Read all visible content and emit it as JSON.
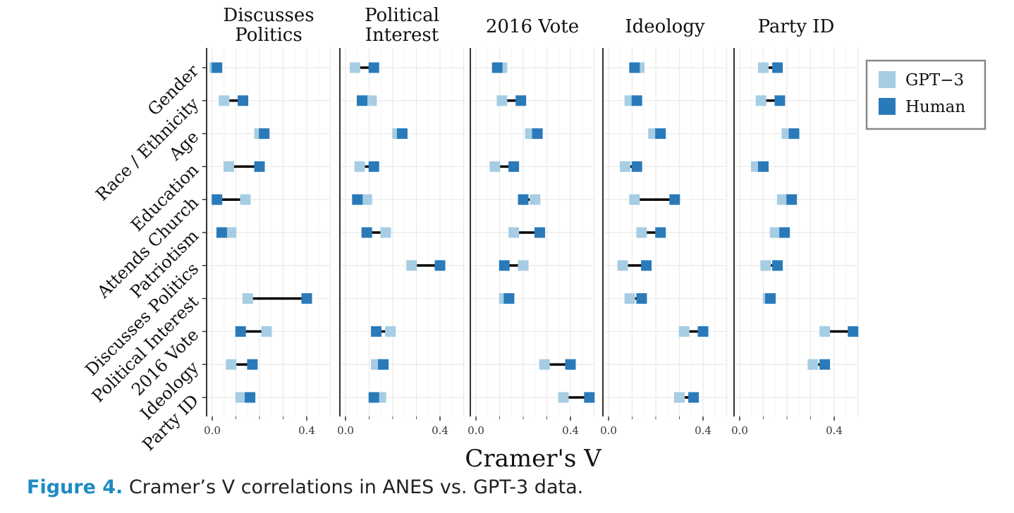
{
  "chart_data": {
    "type": "dot-dumbbell",
    "xlabel": "Cramer's V",
    "xticks": [
      0.0,
      0.4
    ],
    "xtick_labels": [
      "0.0",
      "0.4"
    ],
    "xlim": [
      0.0,
      0.5
    ],
    "grid": true,
    "legend_position": "right",
    "legend": [
      {
        "name": "GPT−3",
        "color": "#a6cde3"
      },
      {
        "name": "Human",
        "color": "#2a7ab9"
      }
    ],
    "colors": {
      "gpt3": "#a6cde3",
      "human": "#2a7ab9",
      "connector": "#000000"
    },
    "y_categories": [
      "Gender",
      "Race / Ethnicity",
      "Age",
      "Education",
      "Attends Church",
      "Patriotism",
      "Discusses Politics",
      "Political Interest",
      "2016 Vote",
      "Ideology",
      "Party ID"
    ],
    "facets": [
      {
        "title": "Discusses\nPolitics",
        "rows": [
          {
            "category": "Gender",
            "gpt3": 0.01,
            "human": 0.02
          },
          {
            "category": "Race / Ethnicity",
            "gpt3": 0.05,
            "human": 0.13
          },
          {
            "category": "Age",
            "gpt3": 0.2,
            "human": 0.22
          },
          {
            "category": "Education",
            "gpt3": 0.07,
            "human": 0.2
          },
          {
            "category": "Attends Church",
            "gpt3": 0.14,
            "human": 0.02
          },
          {
            "category": "Patriotism",
            "gpt3": 0.08,
            "human": 0.04
          },
          {
            "category": "Political Interest",
            "gpt3": 0.15,
            "human": 0.4
          },
          {
            "category": "2016 Vote",
            "gpt3": 0.23,
            "human": 0.12
          },
          {
            "category": "Ideology",
            "gpt3": 0.08,
            "human": 0.17
          },
          {
            "category": "Party ID",
            "gpt3": 0.12,
            "human": 0.16
          }
        ]
      },
      {
        "title": "Political\nInterest",
        "rows": [
          {
            "category": "Gender",
            "gpt3": 0.04,
            "human": 0.12
          },
          {
            "category": "Race / Ethnicity",
            "gpt3": 0.11,
            "human": 0.07
          },
          {
            "category": "Age",
            "gpt3": 0.22,
            "human": 0.24
          },
          {
            "category": "Education",
            "gpt3": 0.06,
            "human": 0.12
          },
          {
            "category": "Attends Church",
            "gpt3": 0.09,
            "human": 0.05
          },
          {
            "category": "Patriotism",
            "gpt3": 0.17,
            "human": 0.09
          },
          {
            "category": "Discusses Politics",
            "gpt3": 0.28,
            "human": 0.4
          },
          {
            "category": "2016 Vote",
            "gpt3": 0.19,
            "human": 0.13
          },
          {
            "category": "Ideology",
            "gpt3": 0.13,
            "human": 0.16
          },
          {
            "category": "Party ID",
            "gpt3": 0.15,
            "human": 0.12
          }
        ]
      },
      {
        "title": "2016 Vote",
        "rows": [
          {
            "category": "Gender",
            "gpt3": 0.11,
            "human": 0.09
          },
          {
            "category": "Race / Ethnicity",
            "gpt3": 0.11,
            "human": 0.19
          },
          {
            "category": "Age",
            "gpt3": 0.23,
            "human": 0.26
          },
          {
            "category": "Education",
            "gpt3": 0.08,
            "human": 0.16
          },
          {
            "category": "Attends Church",
            "gpt3": 0.25,
            "human": 0.2
          },
          {
            "category": "Patriotism",
            "gpt3": 0.16,
            "human": 0.27
          },
          {
            "category": "Discusses Politics",
            "gpt3": 0.2,
            "human": 0.12
          },
          {
            "category": "Political Interest",
            "gpt3": 0.12,
            "human": 0.14
          },
          {
            "category": "Ideology",
            "gpt3": 0.29,
            "human": 0.4
          },
          {
            "category": "Party ID",
            "gpt3": 0.37,
            "human": 0.48
          }
        ]
      },
      {
        "title": "Ideology",
        "rows": [
          {
            "category": "Gender",
            "gpt3": 0.13,
            "human": 0.11
          },
          {
            "category": "Race / Ethnicity",
            "gpt3": 0.09,
            "human": 0.12
          },
          {
            "category": "Age",
            "gpt3": 0.19,
            "human": 0.22
          },
          {
            "category": "Education",
            "gpt3": 0.07,
            "human": 0.12
          },
          {
            "category": "Attends Church",
            "gpt3": 0.11,
            "human": 0.28
          },
          {
            "category": "Patriotism",
            "gpt3": 0.14,
            "human": 0.22
          },
          {
            "category": "Discusses Politics",
            "gpt3": 0.06,
            "human": 0.16
          },
          {
            "category": "Political Interest",
            "gpt3": 0.09,
            "human": 0.14
          },
          {
            "category": "2016 Vote",
            "gpt3": 0.32,
            "human": 0.4
          },
          {
            "category": "Party ID",
            "gpt3": 0.3,
            "human": 0.36
          }
        ]
      },
      {
        "title": "Party ID",
        "rows": [
          {
            "category": "Gender",
            "gpt3": 0.1,
            "human": 0.16
          },
          {
            "category": "Race / Ethnicity",
            "gpt3": 0.09,
            "human": 0.17
          },
          {
            "category": "Age",
            "gpt3": 0.2,
            "human": 0.23
          },
          {
            "category": "Education",
            "gpt3": 0.07,
            "human": 0.1
          },
          {
            "category": "Attends Church",
            "gpt3": 0.18,
            "human": 0.22
          },
          {
            "category": "Patriotism",
            "gpt3": 0.15,
            "human": 0.19
          },
          {
            "category": "Discusses Politics",
            "gpt3": 0.11,
            "human": 0.16
          },
          {
            "category": "Political Interest",
            "gpt3": 0.12,
            "human": 0.13
          },
          {
            "category": "2016 Vote",
            "gpt3": 0.36,
            "human": 0.48
          },
          {
            "category": "Ideology",
            "gpt3": 0.31,
            "human": 0.36
          }
        ]
      }
    ]
  },
  "caption": {
    "label": "Figure 4.",
    "text": " Cramer’s V correlations in ANES vs. GPT-3 data."
  }
}
